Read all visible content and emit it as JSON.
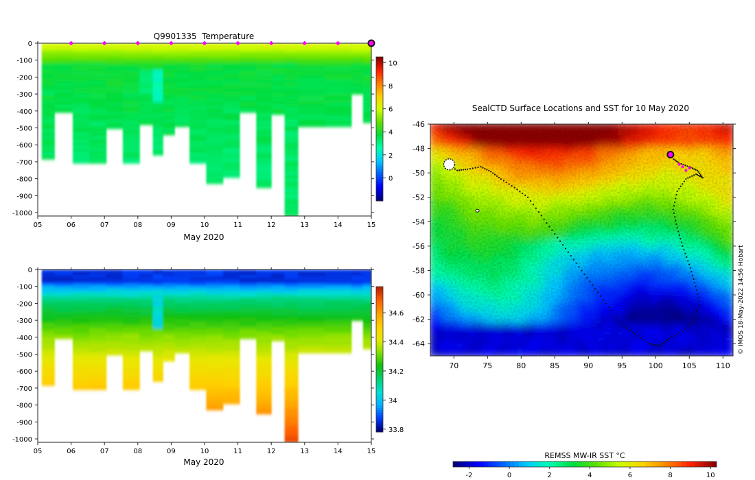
{
  "chart_data": [
    {
      "type": "heatmap",
      "title": "Q9901335  Temperature",
      "xlabel": "May 2020",
      "ylabel": "",
      "x_ticks": [
        "05",
        "06",
        "07",
        "08",
        "09",
        "10",
        "11",
        "12",
        "13",
        "14",
        "15"
      ],
      "y_ticks": [
        "0",
        "-100",
        "-200",
        "-300",
        "-400",
        "-500",
        "-600",
        "-700",
        "-800",
        "-900",
        "-1000"
      ],
      "ylim": [
        -1020,
        0
      ],
      "xlim": [
        5,
        15
      ],
      "profile_days": [
        5.2,
        5.8,
        6.3,
        6.8,
        7.3,
        7.8,
        8.3,
        8.6,
        8.9,
        9.3,
        9.8,
        10.3,
        10.8,
        11.3,
        11.8,
        12.2,
        12.6,
        13.0,
        14.2,
        14.6,
        14.9
      ],
      "profile_max_depth": [
        680,
        400,
        700,
        700,
        500,
        700,
        470,
        650,
        540,
        490,
        700,
        820,
        790,
        400,
        850,
        420,
        1020,
        490,
        490,
        300,
        460
      ],
      "surface_value_range": [
        5.5,
        6.2
      ],
      "deep_value_range": [
        2.5,
        4.5
      ],
      "profile_markers_days": [
        6,
        7,
        8,
        9,
        10,
        11,
        12,
        13,
        14
      ],
      "current_position_day": 15,
      "colorbar": {
        "ticks": [
          "10",
          "8",
          "6",
          "4",
          "2",
          "0"
        ],
        "vmin": -2,
        "vmax": 10.5,
        "colors": [
          "#00007f",
          "#0000ff",
          "#0060ff",
          "#00c8ff",
          "#00ffb0",
          "#00dd40",
          "#60e000",
          "#ccff00",
          "#ffd000",
          "#ff8000",
          "#ff2000",
          "#8b0000"
        ]
      }
    },
    {
      "type": "heatmap",
      "title": "",
      "xlabel": "May 2020",
      "ylabel": "",
      "x_ticks": [
        "05",
        "06",
        "07",
        "08",
        "09",
        "10",
        "11",
        "12",
        "13",
        "14",
        "15"
      ],
      "y_ticks": [
        "0",
        "-100",
        "-200",
        "-300",
        "-400",
        "-500",
        "-600",
        "-700",
        "-800",
        "-900",
        "-1000"
      ],
      "ylim": [
        -1020,
        0
      ],
      "xlim": [
        5,
        15
      ],
      "profile_days": [
        5.2,
        5.8,
        6.3,
        6.8,
        7.3,
        7.8,
        8.3,
        8.6,
        8.9,
        9.3,
        9.8,
        10.3,
        10.8,
        11.3,
        11.8,
        12.2,
        12.6,
        13.0,
        14.2,
        14.6,
        14.9
      ],
      "profile_max_depth": [
        680,
        400,
        700,
        700,
        500,
        700,
        470,
        650,
        540,
        490,
        700,
        820,
        790,
        400,
        850,
        420,
        1020,
        490,
        490,
        300,
        460
      ],
      "value_range": [
        33.8,
        34.6
      ],
      "colorbar": {
        "ticks": [
          "34.6",
          "34.4",
          "34.2",
          "34",
          "33.8"
        ],
        "vmin": 33.78,
        "vmax": 34.78,
        "colors": [
          "#000080",
          "#0040ff",
          "#00b4ff",
          "#00e0d0",
          "#00d070",
          "#10c010",
          "#80e000",
          "#e8e800",
          "#ffd000",
          "#ffa000",
          "#ff6000",
          "#c02000"
        ]
      }
    },
    {
      "type": "heatmap",
      "title": "SealCTD Surface Locations and SST for 10 May 2020",
      "xlabel": "",
      "ylabel": "",
      "x_ticks": [
        "70",
        "75",
        "80",
        "85",
        "90",
        "95",
        "100",
        "105",
        "110"
      ],
      "y_ticks": [
        "-46",
        "-48",
        "-50",
        "-52",
        "-54",
        "-56",
        "-58",
        "-60",
        "-62",
        "-64"
      ],
      "xlim": [
        66.5,
        111.5
      ],
      "ylim": [
        -65,
        -46
      ],
      "sst_range_c": [
        -2,
        10
      ],
      "track_lonlat": [
        [
          68.8,
          -49.2
        ],
        [
          70.5,
          -49.8
        ],
        [
          72,
          -49.7
        ],
        [
          74,
          -49.5
        ],
        [
          75.5,
          -49.9
        ],
        [
          77,
          -50.5
        ],
        [
          79,
          -51.2
        ],
        [
          81,
          -52
        ],
        [
          83,
          -53.5
        ],
        [
          85,
          -55
        ],
        [
          87,
          -56.5
        ],
        [
          89,
          -58
        ],
        [
          91,
          -59.5
        ],
        [
          93,
          -61
        ],
        [
          95,
          -62.5
        ],
        [
          97,
          -63.2
        ],
        [
          99,
          -64
        ],
        [
          100.5,
          -64.2
        ],
        [
          102,
          -63.6
        ],
        [
          104,
          -63
        ],
        [
          106,
          -62
        ],
        [
          106.5,
          -60.5
        ],
        [
          105.8,
          -59
        ],
        [
          105,
          -57.5
        ],
        [
          104,
          -56
        ],
        [
          103.2,
          -54.5
        ],
        [
          102.6,
          -53
        ],
        [
          103.2,
          -51.5
        ],
        [
          104.5,
          -50.5
        ],
        [
          106,
          -50.1
        ],
        [
          107,
          -50.4
        ],
        [
          106.2,
          -49.8
        ],
        [
          105,
          -49.5
        ],
        [
          103.5,
          -49.2
        ],
        [
          102.5,
          -48.8
        ]
      ],
      "current_position": [
        102.2,
        -48.5
      ],
      "colorbar": {
        "label": "REMSS MW-IR SST °C",
        "ticks": [
          "-2",
          "0",
          "2",
          "4",
          "6",
          "8",
          "10"
        ],
        "vmin": -2.8,
        "vmax": 10.3,
        "colors": [
          "#00007f",
          "#0000ff",
          "#0060ff",
          "#00c8ff",
          "#00ffb0",
          "#00dd40",
          "#60e000",
          "#ccff00",
          "#ffd000",
          "#ff8000",
          "#ff2000",
          "#8b0000"
        ]
      },
      "credit": "© IMOS 18-May-2022 14:56 Hobart"
    }
  ]
}
